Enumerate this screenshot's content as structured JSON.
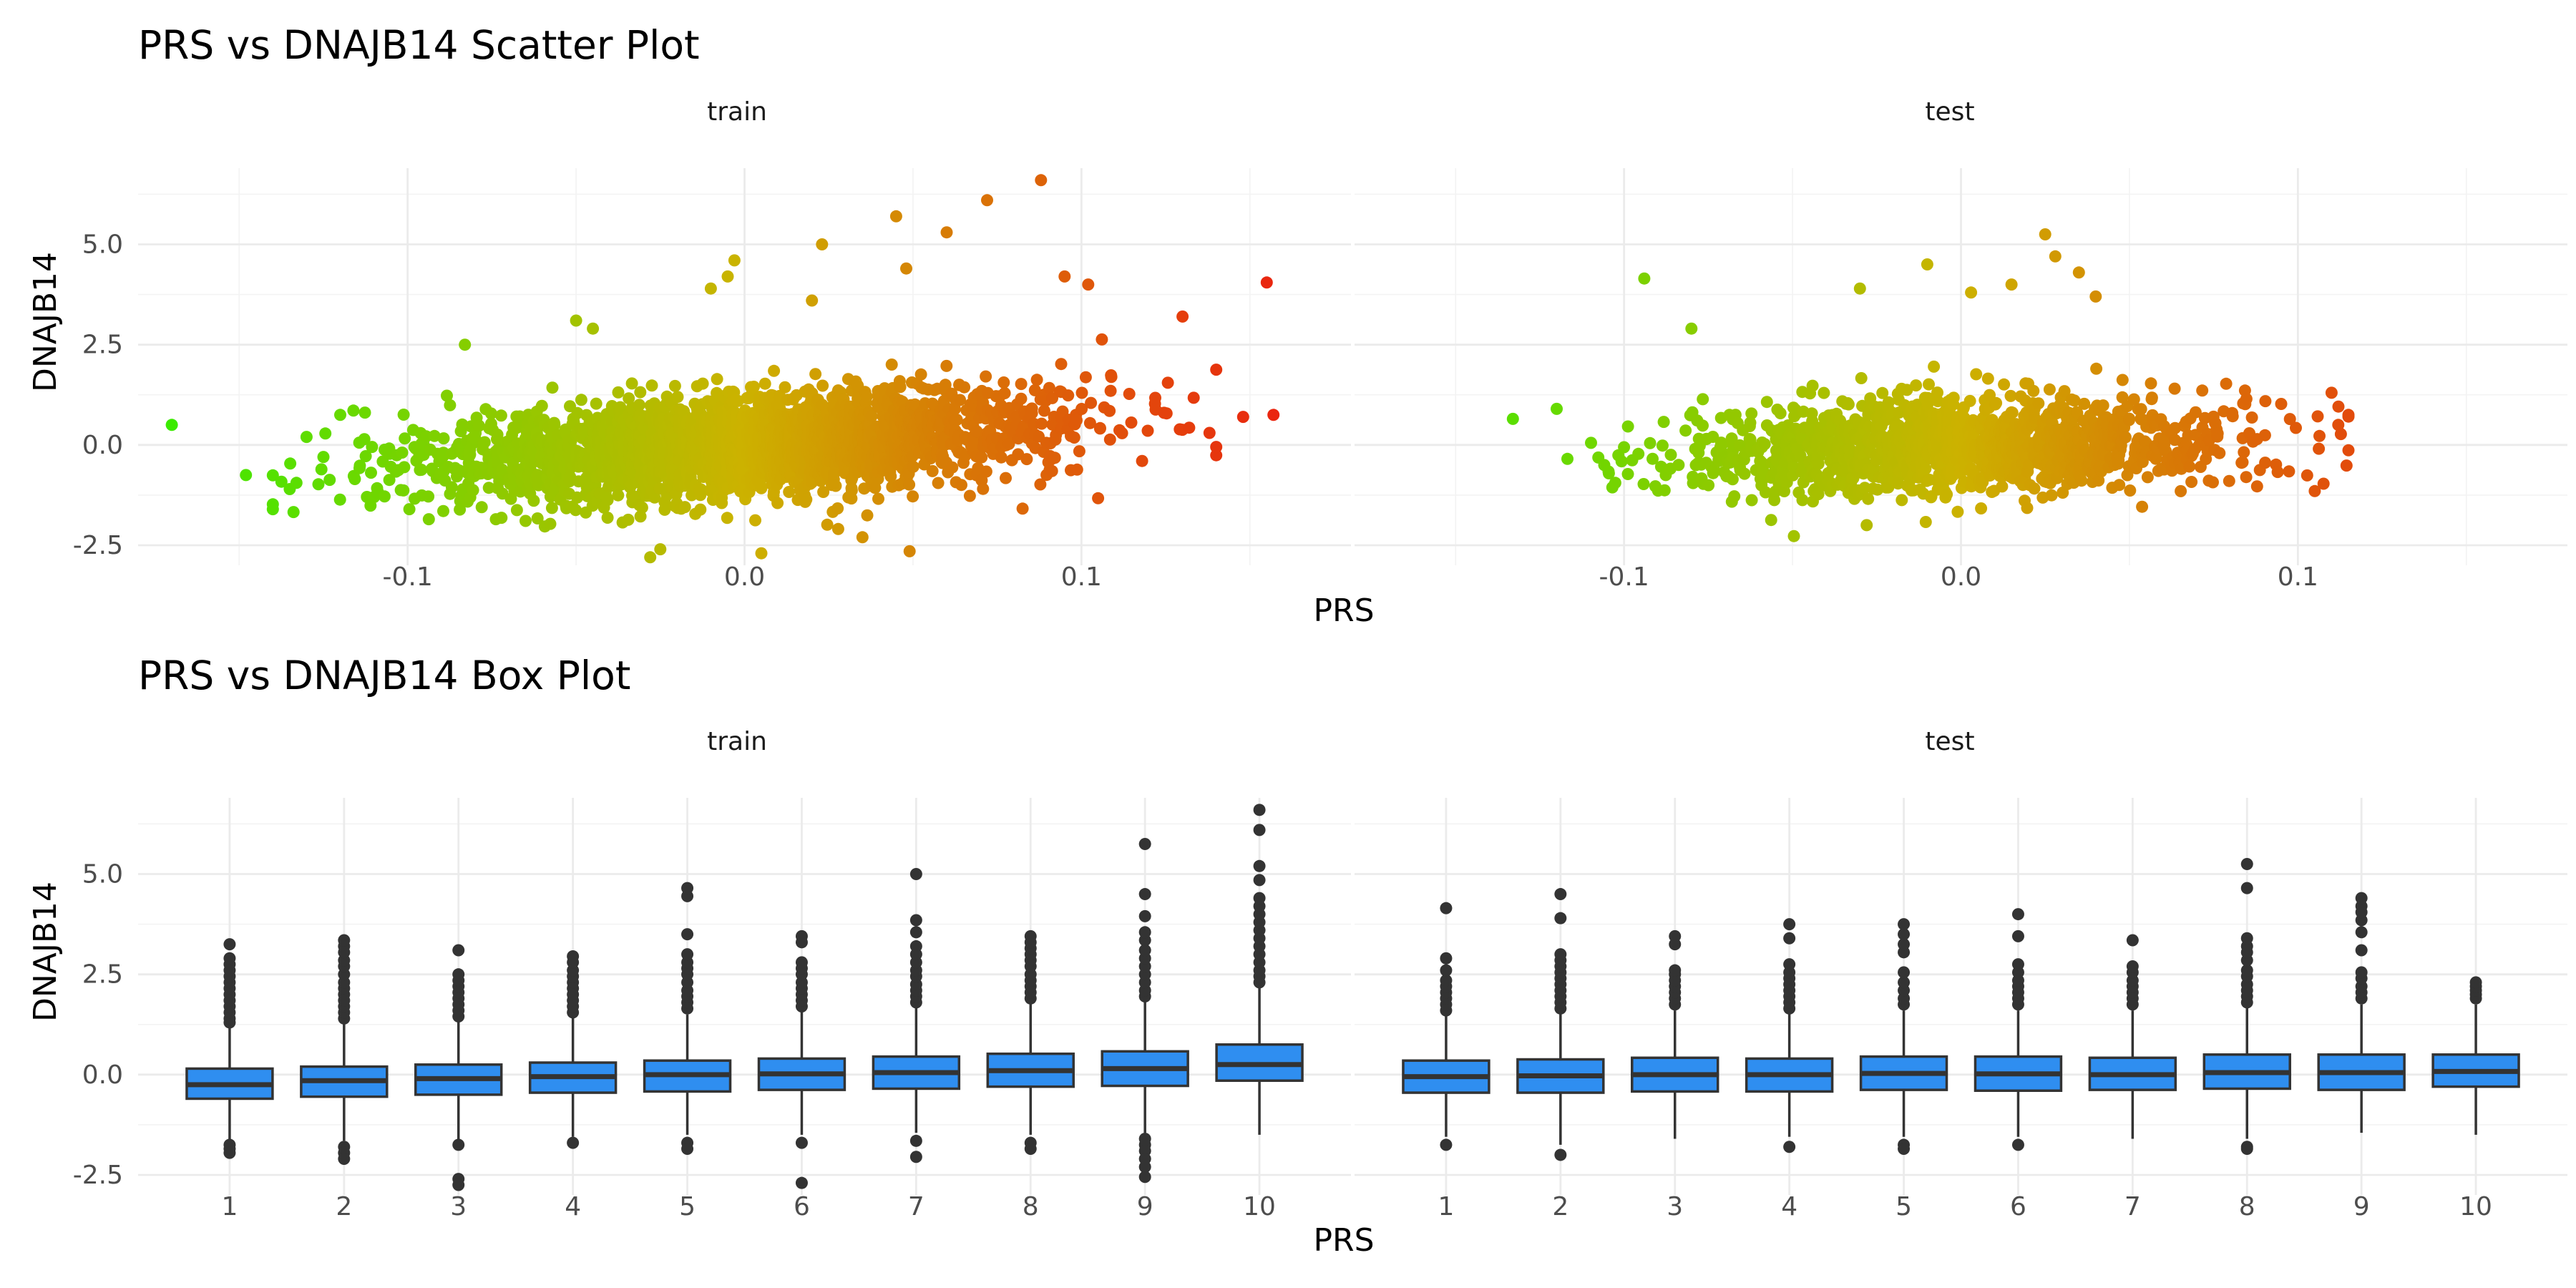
{
  "chart_data": [
    {
      "type": "scatter",
      "title": "PRS vs DNAJB14 Scatter Plot",
      "xlabel": "PRS",
      "ylabel": "DNAJB14",
      "xlim": [
        -0.18,
        0.18
      ],
      "ylim": [
        -3.0,
        6.9
      ],
      "x_ticks": [
        -0.1,
        0.0,
        0.1
      ],
      "x_tick_labels": [
        "-0.1",
        "0.0",
        "0.1"
      ],
      "y_ticks": [
        -2.5,
        0.0,
        2.5,
        5.0
      ],
      "y_tick_labels": [
        "-2.5",
        "0.0",
        "2.5",
        "5.0"
      ],
      "grid": true,
      "color_low": "#33ee00",
      "color_mid": "#ccb200",
      "color_high": "#ee1111",
      "panels": [
        {
          "strip": "train",
          "x_range": [
            -0.14,
            0.14
          ],
          "x_mean": 0.0,
          "x_sd": 0.045,
          "n_points": 2600,
          "y_slope": 5.0,
          "y_sd": 0.62,
          "outliers": [
            {
              "x": -0.17,
              "y": 0.5
            },
            {
              "x": -0.148,
              "y": -0.75
            },
            {
              "x": -0.135,
              "y": -1.1
            },
            {
              "x": -0.13,
              "y": 0.2
            },
            {
              "x": -0.125,
              "y": -0.3
            },
            {
              "x": -0.12,
              "y": 0.75
            },
            {
              "x": -0.11,
              "y": -1.3
            },
            {
              "x": -0.083,
              "y": 2.5
            },
            {
              "x": -0.05,
              "y": 3.1
            },
            {
              "x": -0.045,
              "y": 2.9
            },
            {
              "x": -0.028,
              "y": -2.8
            },
            {
              "x": -0.025,
              "y": -2.6
            },
            {
              "x": -0.01,
              "y": 3.9
            },
            {
              "x": -0.005,
              "y": 4.2
            },
            {
              "x": -0.003,
              "y": 4.6
            },
            {
              "x": 0.005,
              "y": -2.7
            },
            {
              "x": 0.02,
              "y": 3.6
            },
            {
              "x": 0.023,
              "y": 5.0
            },
            {
              "x": 0.035,
              "y": -2.3
            },
            {
              "x": 0.045,
              "y": 5.7
            },
            {
              "x": 0.048,
              "y": 4.4
            },
            {
              "x": 0.049,
              "y": -2.65
            },
            {
              "x": 0.06,
              "y": 5.3
            },
            {
              "x": 0.072,
              "y": 6.1
            },
            {
              "x": 0.088,
              "y": 6.6
            },
            {
              "x": 0.095,
              "y": 4.2
            },
            {
              "x": 0.102,
              "y": 4.0
            },
            {
              "x": 0.118,
              "y": -0.4
            },
            {
              "x": 0.13,
              "y": 3.2
            },
            {
              "x": 0.138,
              "y": 0.3
            },
            {
              "x": 0.14,
              "y": -0.05
            },
            {
              "x": 0.148,
              "y": 0.7
            },
            {
              "x": 0.155,
              "y": 4.05
            },
            {
              "x": 0.157,
              "y": 0.75
            }
          ]
        },
        {
          "strip": "test",
          "x_range": [
            -0.125,
            0.115
          ],
          "x_mean": 0.0,
          "x_sd": 0.042,
          "n_points": 1400,
          "y_slope": 3.0,
          "y_sd": 0.6,
          "outliers": [
            {
              "x": -0.133,
              "y": 0.65
            },
            {
              "x": -0.12,
              "y": 0.9
            },
            {
              "x": -0.094,
              "y": 4.15
            },
            {
              "x": -0.08,
              "y": 2.9
            },
            {
              "x": -0.03,
              "y": 3.9
            },
            {
              "x": -0.028,
              "y": -2.0
            },
            {
              "x": -0.01,
              "y": 4.5
            },
            {
              "x": 0.003,
              "y": 3.8
            },
            {
              "x": 0.015,
              "y": 4.0
            },
            {
              "x": 0.025,
              "y": 5.25
            },
            {
              "x": 0.028,
              "y": 4.7
            },
            {
              "x": 0.035,
              "y": 4.3
            },
            {
              "x": 0.04,
              "y": 3.7
            },
            {
              "x": 0.105,
              "y": -1.15
            },
            {
              "x": 0.11,
              "y": 1.3
            },
            {
              "x": 0.112,
              "y": 0.5
            },
            {
              "x": 0.115,
              "y": 0.75
            }
          ]
        }
      ]
    },
    {
      "type": "box",
      "title": "PRS vs DNAJB14 Box Plot",
      "xlabel": "PRS",
      "ylabel": "DNAJB14",
      "ylim": [
        -3.0,
        6.9
      ],
      "y_ticks": [
        -2.5,
        0.0,
        2.5,
        5.0
      ],
      "y_tick_labels": [
        "-2.5",
        "0.0",
        "2.5",
        "5.0"
      ],
      "categories": [
        "1",
        "2",
        "3",
        "4",
        "5",
        "6",
        "7",
        "8",
        "9",
        "10"
      ],
      "box_fill": "#2f8ef0",
      "grid": true,
      "panels": [
        {
          "strip": "train",
          "boxes": [
            {
              "q1": -0.6,
              "median": -0.25,
              "q3": 0.15,
              "lower_whisker": -1.6,
              "upper_whisker": 1.2,
              "outliers": [
                -1.75,
                -1.85,
                -1.95,
                1.3,
                1.4,
                1.55,
                1.7,
                1.85,
                2.0,
                2.15,
                2.3,
                2.45,
                2.6,
                2.75,
                2.9,
                3.25
              ]
            },
            {
              "q1": -0.55,
              "median": -0.15,
              "q3": 0.2,
              "lower_whisker": -1.65,
              "upper_whisker": 1.3,
              "outliers": [
                -1.8,
                -1.95,
                -2.1,
                1.4,
                1.55,
                1.7,
                1.85,
                2.0,
                2.15,
                2.3,
                2.5,
                2.7,
                2.85,
                3.05,
                3.2,
                3.35
              ]
            },
            {
              "q1": -0.5,
              "median": -0.1,
              "q3": 0.25,
              "lower_whisker": -1.6,
              "upper_whisker": 1.35,
              "outliers": [
                -1.75,
                -2.6,
                -2.75,
                1.45,
                1.6,
                1.75,
                1.9,
                2.05,
                2.2,
                2.35,
                2.5,
                3.1
              ]
            },
            {
              "q1": -0.45,
              "median": -0.05,
              "q3": 0.3,
              "lower_whisker": -1.55,
              "upper_whisker": 1.45,
              "outliers": [
                -1.7,
                1.55,
                1.7,
                1.85,
                2.0,
                2.15,
                2.3,
                2.45,
                2.6,
                2.8,
                2.95
              ]
            },
            {
              "q1": -0.42,
              "median": 0.0,
              "q3": 0.35,
              "lower_whisker": -1.5,
              "upper_whisker": 1.5,
              "outliers": [
                -1.7,
                -1.85,
                1.65,
                1.8,
                1.95,
                2.1,
                2.3,
                2.5,
                2.65,
                2.8,
                3.0,
                3.5,
                4.45,
                4.65
              ]
            },
            {
              "q1": -0.38,
              "median": 0.02,
              "q3": 0.4,
              "lower_whisker": -1.5,
              "upper_whisker": 1.6,
              "outliers": [
                -1.7,
                -2.7,
                1.7,
                1.85,
                2.0,
                2.15,
                2.3,
                2.5,
                2.65,
                2.8,
                3.3,
                3.45
              ]
            },
            {
              "q1": -0.35,
              "median": 0.05,
              "q3": 0.45,
              "lower_whisker": -1.45,
              "upper_whisker": 1.7,
              "outliers": [
                -1.65,
                -2.05,
                1.8,
                1.95,
                2.1,
                2.25,
                2.45,
                2.6,
                2.8,
                3.0,
                3.2,
                3.55,
                3.85,
                5.0
              ]
            },
            {
              "q1": -0.3,
              "median": 0.1,
              "q3": 0.52,
              "lower_whisker": -1.5,
              "upper_whisker": 1.8,
              "outliers": [
                -1.7,
                -1.85,
                1.9,
                2.05,
                2.2,
                2.35,
                2.5,
                2.7,
                2.85,
                3.0,
                3.15,
                3.3,
                3.45
              ]
            },
            {
              "q1": -0.28,
              "median": 0.15,
              "q3": 0.58,
              "lower_whisker": -1.45,
              "upper_whisker": 1.85,
              "outliers": [
                -1.6,
                -1.75,
                -1.9,
                -2.1,
                -2.3,
                -2.55,
                1.95,
                2.1,
                2.3,
                2.5,
                2.7,
                2.9,
                3.1,
                3.35,
                3.55,
                3.95,
                4.5,
                5.75
              ]
            },
            {
              "q1": -0.15,
              "median": 0.25,
              "q3": 0.75,
              "lower_whisker": -1.5,
              "upper_whisker": 2.2,
              "outliers": [
                2.3,
                2.45,
                2.6,
                2.8,
                3.0,
                3.2,
                3.4,
                3.6,
                3.8,
                4.0,
                4.2,
                4.4,
                4.85,
                5.2,
                6.1,
                6.6
              ]
            }
          ]
        },
        {
          "strip": "test",
          "boxes": [
            {
              "q1": -0.45,
              "median": -0.05,
              "q3": 0.35,
              "lower_whisker": -1.55,
              "upper_whisker": 1.5,
              "outliers": [
                -1.75,
                1.6,
                1.75,
                1.9,
                2.05,
                2.2,
                2.35,
                2.6,
                2.9,
                4.15
              ]
            },
            {
              "q1": -0.45,
              "median": -0.03,
              "q3": 0.38,
              "lower_whisker": -1.75,
              "upper_whisker": 1.55,
              "outliers": [
                -2.0,
                1.65,
                1.8,
                1.95,
                2.1,
                2.25,
                2.4,
                2.55,
                2.7,
                2.85,
                3.0,
                3.9,
                4.5
              ]
            },
            {
              "q1": -0.42,
              "median": 0.0,
              "q3": 0.42,
              "lower_whisker": -1.6,
              "upper_whisker": 1.6,
              "outliers": [
                1.75,
                1.9,
                2.05,
                2.2,
                2.35,
                2.5,
                2.6,
                3.25,
                3.45
              ]
            },
            {
              "q1": -0.42,
              "median": 0.0,
              "q3": 0.4,
              "lower_whisker": -1.55,
              "upper_whisker": 1.55,
              "outliers": [
                -1.8,
                1.65,
                1.8,
                1.95,
                2.1,
                2.25,
                2.4,
                2.55,
                2.75,
                3.4,
                3.75
              ]
            },
            {
              "q1": -0.38,
              "median": 0.03,
              "q3": 0.45,
              "lower_whisker": -1.55,
              "upper_whisker": 1.6,
              "outliers": [
                -1.75,
                -1.85,
                1.75,
                1.9,
                2.1,
                2.3,
                2.55,
                3.05,
                3.25,
                3.5,
                3.75
              ]
            },
            {
              "q1": -0.4,
              "median": 0.02,
              "q3": 0.45,
              "lower_whisker": -1.55,
              "upper_whisker": 1.6,
              "outliers": [
                -1.75,
                1.75,
                1.9,
                2.05,
                2.2,
                2.35,
                2.55,
                2.75,
                3.45,
                4.0
              ]
            },
            {
              "q1": -0.38,
              "median": 0.0,
              "q3": 0.42,
              "lower_whisker": -1.6,
              "upper_whisker": 1.6,
              "outliers": [
                1.75,
                1.9,
                2.05,
                2.2,
                2.35,
                2.55,
                2.7,
                3.35
              ]
            },
            {
              "q1": -0.35,
              "median": 0.05,
              "q3": 0.5,
              "lower_whisker": -1.6,
              "upper_whisker": 1.7,
              "outliers": [
                -1.8,
                -1.85,
                1.8,
                1.95,
                2.1,
                2.25,
                2.45,
                2.6,
                2.85,
                3.05,
                3.2,
                3.4,
                4.65,
                5.25
              ]
            },
            {
              "q1": -0.38,
              "median": 0.05,
              "q3": 0.5,
              "lower_whisker": -1.45,
              "upper_whisker": 1.75,
              "outliers": [
                1.9,
                2.05,
                2.2,
                2.4,
                2.55,
                3.1,
                3.55,
                3.85,
                4.05,
                4.2,
                4.4
              ]
            },
            {
              "q1": -0.3,
              "median": 0.08,
              "q3": 0.5,
              "lower_whisker": -1.5,
              "upper_whisker": 1.75,
              "outliers": [
                1.9,
                2.0,
                2.1,
                2.2,
                2.3
              ]
            }
          ]
        }
      ]
    }
  ]
}
